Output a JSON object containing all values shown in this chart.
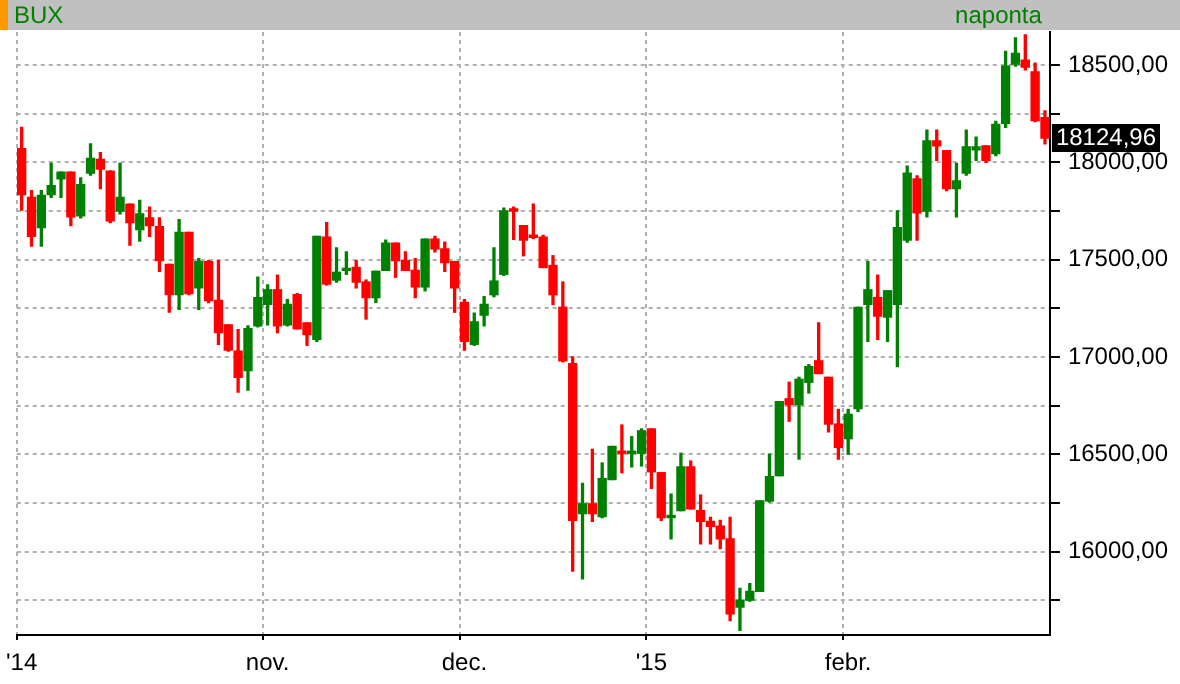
{
  "chart_data": {
    "type": "candlestick",
    "title": "BUX",
    "subtitle": "naponta",
    "categories": [
      "'14",
      null,
      null,
      null,
      null,
      null,
      null,
      null,
      null,
      null,
      null,
      null,
      null,
      null,
      null,
      null,
      null,
      null,
      null,
      null,
      null,
      null,
      null,
      null,
      null,
      "nov.",
      null,
      null,
      null,
      null,
      null,
      null,
      null,
      null,
      null,
      null,
      null,
      null,
      null,
      null,
      null,
      null,
      null,
      null,
      null,
      "dec.",
      null,
      null,
      null,
      null,
      null,
      null,
      null,
      null,
      null,
      null,
      null,
      null,
      null,
      null,
      null,
      null,
      null,
      null,
      "'15",
      null,
      null,
      null,
      null,
      null,
      null,
      null,
      null,
      null,
      null,
      null,
      null,
      null,
      null,
      null,
      null,
      null,
      null,
      null,
      "febr.",
      null,
      null,
      null,
      null,
      null,
      null,
      null,
      null,
      null,
      null,
      null,
      null,
      null,
      null,
      null,
      null,
      null,
      null,
      null,
      null
    ],
    "ohlc": [
      [
        18070,
        18180,
        17755,
        17835
      ],
      [
        17820,
        17855,
        17570,
        17620
      ],
      [
        17665,
        17855,
        17570,
        17830
      ],
      [
        17835,
        17995,
        17820,
        17880
      ],
      [
        17915,
        17950,
        17820,
        17950
      ],
      [
        17950,
        17950,
        17675,
        17720
      ],
      [
        17725,
        17920,
        17715,
        17885
      ],
      [
        17945,
        18095,
        17935,
        18020
      ],
      [
        18015,
        18050,
        17865,
        17965
      ],
      [
        17955,
        17955,
        17690,
        17700
      ],
      [
        17750,
        17995,
        17735,
        17820
      ],
      [
        17785,
        17785,
        17575,
        17690
      ],
      [
        17655,
        17805,
        17595,
        17735
      ],
      [
        17715,
        17770,
        17620,
        17675
      ],
      [
        17670,
        17715,
        17440,
        17495
      ],
      [
        17475,
        17475,
        17230,
        17320
      ],
      [
        17320,
        17705,
        17245,
        17640
      ],
      [
        17640,
        17640,
        17320,
        17325
      ],
      [
        17355,
        17505,
        17245,
        17490
      ],
      [
        17490,
        17495,
        17280,
        17290
      ],
      [
        17290,
        17495,
        17065,
        17125
      ],
      [
        17165,
        17165,
        17030,
        17035
      ],
      [
        17030,
        17140,
        16820,
        16895
      ],
      [
        16930,
        17160,
        16830,
        17145
      ],
      [
        17160,
        17410,
        17155,
        17305
      ],
      [
        17270,
        17370,
        17165,
        17345
      ],
      [
        17345,
        17420,
        17125,
        17160
      ],
      [
        17165,
        17295,
        17160,
        17270
      ],
      [
        17320,
        17325,
        17145,
        17145
      ],
      [
        17175,
        17175,
        17060,
        17115
      ],
      [
        17090,
        17620,
        17080,
        17620
      ],
      [
        17615,
        17690,
        17370,
        17375
      ],
      [
        17395,
        17560,
        17385,
        17435
      ],
      [
        17445,
        17540,
        17425,
        17455
      ],
      [
        17460,
        17495,
        17355,
        17385
      ],
      [
        17385,
        17395,
        17195,
        17305
      ],
      [
        17305,
        17440,
        17280,
        17440
      ],
      [
        17445,
        17600,
        17445,
        17585
      ],
      [
        17585,
        17585,
        17410,
        17495
      ],
      [
        17495,
        17540,
        17445,
        17445
      ],
      [
        17445,
        17505,
        17305,
        17360
      ],
      [
        17360,
        17605,
        17340,
        17605
      ],
      [
        17605,
        17620,
        17540,
        17555
      ],
      [
        17555,
        17590,
        17440,
        17485
      ],
      [
        17490,
        17490,
        17230,
        17355
      ],
      [
        17280,
        17295,
        17035,
        17080
      ],
      [
        17065,
        17225,
        17060,
        17180
      ],
      [
        17215,
        17310,
        17160,
        17270
      ],
      [
        17320,
        17560,
        17310,
        17390
      ],
      [
        17425,
        17765,
        17420,
        17750
      ],
      [
        17755,
        17770,
        17605,
        17750
      ],
      [
        17675,
        17675,
        17520,
        17600
      ],
      [
        17620,
        17785,
        17610,
        17615
      ],
      [
        17615,
        17625,
        17460,
        17460
      ],
      [
        17470,
        17520,
        17270,
        17320
      ],
      [
        17255,
        17385,
        16975,
        16980
      ],
      [
        16965,
        17000,
        15900,
        16160
      ],
      [
        16195,
        16350,
        15860,
        16245
      ],
      [
        16245,
        16525,
        16155,
        16195
      ],
      [
        16180,
        16455,
        16175,
        16375
      ],
      [
        16370,
        16540,
        16370,
        16540
      ],
      [
        16515,
        16650,
        16405,
        16505
      ],
      [
        16505,
        16590,
        16435,
        16515
      ],
      [
        16505,
        16630,
        16440,
        16620
      ],
      [
        16630,
        16630,
        16325,
        16410
      ],
      [
        16405,
        16405,
        16160,
        16175
      ],
      [
        16175,
        16295,
        16065,
        16180
      ],
      [
        16210,
        16505,
        16210,
        16435
      ],
      [
        16435,
        16465,
        16220,
        16220
      ],
      [
        16210,
        16290,
        16040,
        16155
      ],
      [
        16155,
        16175,
        16040,
        16130
      ],
      [
        16130,
        16160,
        16015,
        16065
      ],
      [
        16065,
        16175,
        15645,
        15680
      ],
      [
        15715,
        15810,
        15595,
        15750
      ],
      [
        15750,
        15835,
        15745,
        15795
      ],
      [
        15795,
        16260,
        15795,
        16260
      ],
      [
        16260,
        16500,
        16255,
        16385
      ],
      [
        16390,
        16770,
        16390,
        16770
      ],
      [
        16785,
        16870,
        16670,
        16755
      ],
      [
        16755,
        16895,
        16475,
        16885
      ],
      [
        16870,
        16960,
        16815,
        16950
      ],
      [
        16980,
        17175,
        16915,
        16915
      ],
      [
        16895,
        16895,
        16615,
        16655
      ],
      [
        16655,
        16730,
        16475,
        16535
      ],
      [
        16580,
        16730,
        16500,
        16705
      ],
      [
        16735,
        17255,
        16720,
        17255
      ],
      [
        17270,
        17490,
        17080,
        17345
      ],
      [
        17305,
        17420,
        17090,
        17210
      ],
      [
        17205,
        17340,
        17080,
        17340
      ],
      [
        17270,
        17750,
        16950,
        17665
      ],
      [
        17600,
        17980,
        17590,
        17945
      ],
      [
        17915,
        17930,
        17600,
        17740
      ],
      [
        17750,
        18165,
        17720,
        18110
      ],
      [
        18110,
        18165,
        18010,
        18085
      ],
      [
        18060,
        18060,
        17855,
        17865
      ],
      [
        17865,
        17995,
        17720,
        17905
      ],
      [
        17945,
        18165,
        17935,
        18080
      ],
      [
        18065,
        18130,
        18010,
        18080
      ],
      [
        18085,
        18085,
        18000,
        18010
      ],
      [
        18045,
        18210,
        18035,
        18195
      ],
      [
        18200,
        18570,
        18180,
        18495
      ],
      [
        18505,
        18640,
        18495,
        18560
      ],
      [
        18525,
        18655,
        18475,
        18490
      ],
      [
        18465,
        18510,
        18210,
        18215
      ],
      [
        18230,
        18265,
        18095,
        18124.96
      ]
    ],
    "colors": [
      "#ff0000",
      "#ff0000",
      "#008000",
      "#008000",
      "#008000",
      "#ff0000",
      "#008000",
      "#008000",
      "#ff0000",
      "#ff0000",
      "#008000",
      "#ff0000",
      "#008000",
      "#ff0000",
      "#ff0000",
      "#ff0000",
      "#008000",
      "#ff0000",
      "#008000",
      "#ff0000",
      "#ff0000",
      "#ff0000",
      "#ff0000",
      "#008000",
      "#008000",
      "#008000",
      "#ff0000",
      "#008000",
      "#ff0000",
      "#ff0000",
      "#008000",
      "#ff0000",
      "#008000",
      "#008000",
      "#ff0000",
      "#ff0000",
      "#008000",
      "#008000",
      "#ff0000",
      "#ff0000",
      "#ff0000",
      "#008000",
      "#ff0000",
      "#ff0000",
      "#ff0000",
      "#ff0000",
      "#008000",
      "#008000",
      "#008000",
      "#008000",
      "#ff0000",
      "#ff0000",
      "#ff0000",
      "#ff0000",
      "#ff0000",
      "#ff0000",
      "#ff0000",
      "#008000",
      "#ff0000",
      "#008000",
      "#008000",
      "#ff0000",
      "#008000",
      "#008000",
      "#ff0000",
      "#ff0000",
      "#008000",
      "#008000",
      "#ff0000",
      "#ff0000",
      "#ff0000",
      "#ff0000",
      "#ff0000",
      "#008000",
      "#008000",
      "#008000",
      "#008000",
      "#008000",
      "#ff0000",
      "#008000",
      "#008000",
      "#ff0000",
      "#ff0000",
      "#ff0000",
      "#008000",
      "#008000",
      "#008000",
      "#ff0000",
      "#008000",
      "#008000",
      "#008000",
      "#ff0000",
      "#008000",
      "#ff0000",
      "#ff0000",
      "#008000",
      "#008000",
      "#008000",
      "#ff0000",
      "#008000",
      "#008000",
      "#008000",
      "#ff0000",
      "#ff0000",
      "#ff0000"
    ],
    "ylim": [
      15570,
      18670
    ],
    "yticks": [
      {
        "value": 15750,
        "label": null
      },
      {
        "value": 16000,
        "label": "16000,00"
      },
      {
        "value": 16250,
        "label": null
      },
      {
        "value": 16500,
        "label": "16500,00"
      },
      {
        "value": 16750,
        "label": null
      },
      {
        "value": 17000,
        "label": "17000,00"
      },
      {
        "value": 17250,
        "label": null
      },
      {
        "value": 17500,
        "label": "17500,00"
      },
      {
        "value": 17750,
        "label": null
      },
      {
        "value": 18000,
        "label": "18000,00"
      },
      {
        "value": 18250,
        "label": null
      },
      {
        "value": 18500,
        "label": "18500,00"
      }
    ],
    "annotations": [
      "18124,96"
    ],
    "grid": true,
    "legend": false
  }
}
